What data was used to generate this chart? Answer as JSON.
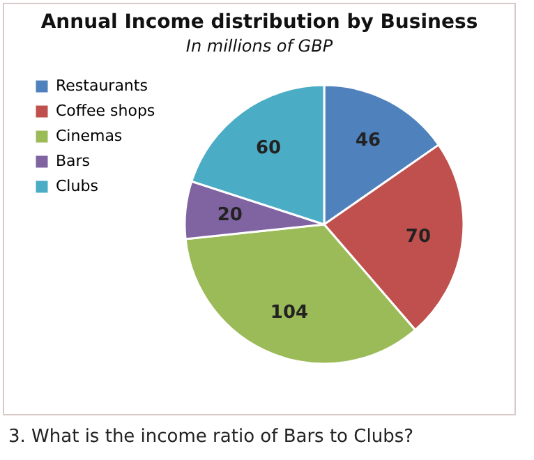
{
  "chart_data": {
    "type": "pie",
    "title": "Annual Income distribution by Business",
    "subtitle": "In millions of GBP",
    "categories": [
      "Restaurants",
      "Coffee shops",
      "Cinemas",
      "Bars",
      "Clubs"
    ],
    "values": [
      46,
      70,
      104,
      20,
      60
    ],
    "colors": [
      "#4f81bd",
      "#c0504d",
      "#9bbb59",
      "#8064a2",
      "#4bacc6"
    ],
    "data_labels": true,
    "legend": "left",
    "annotations": [
      "3. What is the income ratio of Bars to Clubs?"
    ]
  }
}
